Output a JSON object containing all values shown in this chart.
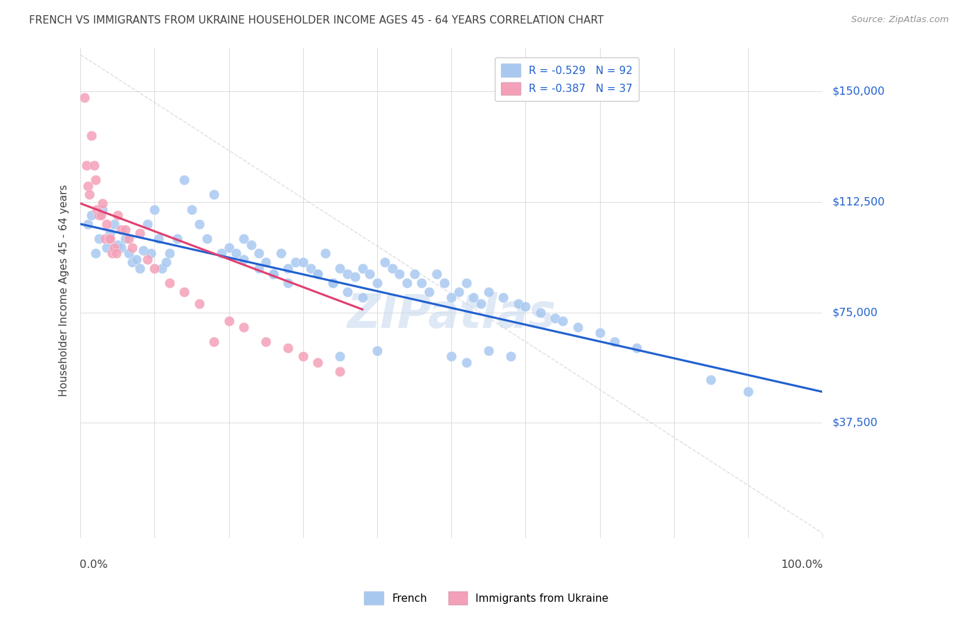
{
  "title": "FRENCH VS IMMIGRANTS FROM UKRAINE HOUSEHOLDER INCOME AGES 45 - 64 YEARS CORRELATION CHART",
  "source": "Source: ZipAtlas.com",
  "ylabel": "Householder Income Ages 45 - 64 years",
  "ytick_labels": [
    "$37,500",
    "$75,000",
    "$112,500",
    "$150,000"
  ],
  "ytick_values": [
    37500,
    75000,
    112500,
    150000
  ],
  "ymin": 0,
  "ymax": 165000,
  "xmin": 0.0,
  "xmax": 1.0,
  "legend_blue_label": "R = -0.529   N = 92",
  "legend_pink_label": "R = -0.387   N = 37",
  "bottom_legend_blue": "French",
  "bottom_legend_pink": "Immigrants from Ukraine",
  "blue_color": "#A8C8F0",
  "pink_color": "#F4A0B8",
  "blue_line_color": "#2060D0",
  "pink_line_color": "#E04070",
  "gray_line_color": "#C8C8C8",
  "title_color": "#404040",
  "source_color": "#909090",
  "legend_text_color": "#2060D0",
  "blue_scatter_x": [
    0.01,
    0.015,
    0.02,
    0.025,
    0.03,
    0.035,
    0.04,
    0.045,
    0.05,
    0.055,
    0.06,
    0.065,
    0.07,
    0.075,
    0.08,
    0.085,
    0.09,
    0.095,
    0.1,
    0.105,
    0.11,
    0.115,
    0.12,
    0.13,
    0.14,
    0.15,
    0.16,
    0.17,
    0.18,
    0.19,
    0.2,
    0.21,
    0.22,
    0.23,
    0.24,
    0.25,
    0.26,
    0.27,
    0.28,
    0.29,
    0.3,
    0.31,
    0.32,
    0.33,
    0.34,
    0.35,
    0.36,
    0.37,
    0.38,
    0.39,
    0.4,
    0.41,
    0.42,
    0.43,
    0.44,
    0.45,
    0.46,
    0.47,
    0.48,
    0.49,
    0.5,
    0.51,
    0.52,
    0.53,
    0.54,
    0.55,
    0.57,
    0.59,
    0.6,
    0.62,
    0.64,
    0.65,
    0.67,
    0.7,
    0.72,
    0.75,
    0.5,
    0.52,
    0.55,
    0.58,
    0.32,
    0.34,
    0.36,
    0.38,
    0.22,
    0.24,
    0.26,
    0.28,
    0.85,
    0.9,
    0.35,
    0.4
  ],
  "blue_scatter_y": [
    105000,
    108000,
    95000,
    100000,
    110000,
    97000,
    102000,
    105000,
    98000,
    97000,
    100000,
    95000,
    92000,
    93000,
    90000,
    96000,
    105000,
    95000,
    110000,
    100000,
    90000,
    92000,
    95000,
    100000,
    120000,
    110000,
    105000,
    100000,
    115000,
    95000,
    97000,
    95000,
    100000,
    98000,
    95000,
    92000,
    88000,
    95000,
    90000,
    92000,
    92000,
    90000,
    88000,
    95000,
    85000,
    90000,
    88000,
    87000,
    90000,
    88000,
    85000,
    92000,
    90000,
    88000,
    85000,
    88000,
    85000,
    82000,
    88000,
    85000,
    80000,
    82000,
    85000,
    80000,
    78000,
    82000,
    80000,
    78000,
    77000,
    75000,
    73000,
    72000,
    70000,
    68000,
    65000,
    63000,
    60000,
    58000,
    62000,
    60000,
    88000,
    85000,
    82000,
    80000,
    93000,
    90000,
    88000,
    85000,
    52000,
    48000,
    60000,
    62000
  ],
  "pink_scatter_x": [
    0.005,
    0.008,
    0.01,
    0.012,
    0.015,
    0.018,
    0.02,
    0.022,
    0.025,
    0.028,
    0.03,
    0.033,
    0.035,
    0.038,
    0.04,
    0.043,
    0.045,
    0.048,
    0.05,
    0.055,
    0.06,
    0.065,
    0.07,
    0.08,
    0.09,
    0.1,
    0.12,
    0.14,
    0.16,
    0.18,
    0.2,
    0.22,
    0.25,
    0.28,
    0.3,
    0.32,
    0.35
  ],
  "pink_scatter_y": [
    148000,
    125000,
    118000,
    115000,
    135000,
    125000,
    120000,
    110000,
    108000,
    108000,
    112000,
    100000,
    105000,
    100000,
    100000,
    95000,
    97000,
    95000,
    108000,
    103000,
    103000,
    100000,
    97000,
    102000,
    93000,
    90000,
    85000,
    82000,
    78000,
    65000,
    72000,
    70000,
    65000,
    63000,
    60000,
    58000,
    55000
  ],
  "blue_trendline_x": [
    0.0,
    1.0
  ],
  "blue_trendline_y": [
    105000,
    48000
  ],
  "pink_trendline_x": [
    0.0,
    0.38
  ],
  "pink_trendline_y": [
    112000,
    76000
  ],
  "diagonal_line_x": [
    0.0,
    1.0
  ],
  "diagonal_line_y": [
    162500,
    0
  ],
  "background_color": "#FFFFFF",
  "grid_color": "#DCDCDC"
}
